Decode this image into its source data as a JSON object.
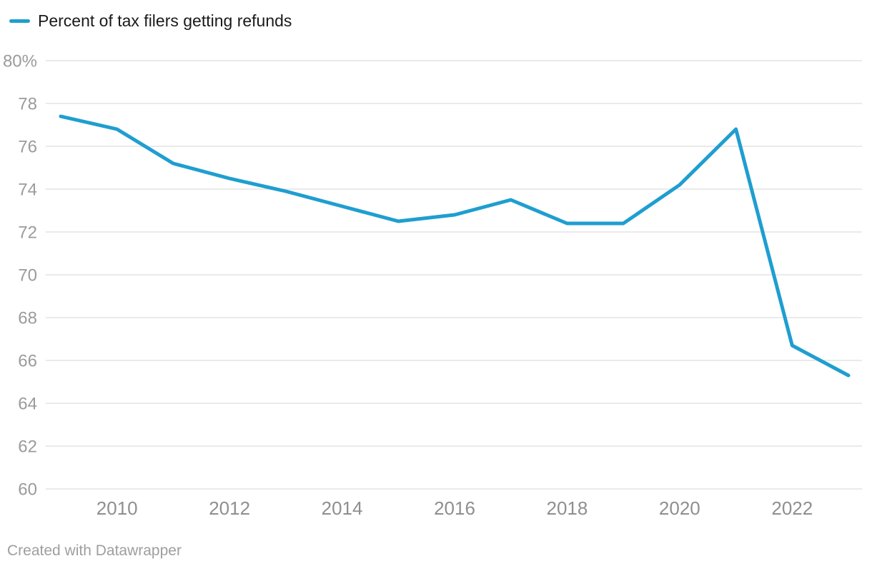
{
  "legend": {
    "label": "Percent of tax filers getting refunds"
  },
  "footer": {
    "credit": "Created with Datawrapper"
  },
  "colors": {
    "line": "#1f9ed0",
    "grid": "#e3e3e3",
    "y_axis_text": "#9b9b9b",
    "x_axis_text": "#8f8f8f",
    "legend_text": "#1a1a1a",
    "footer_text": "#9e9e9e"
  },
  "chart_data": {
    "type": "line",
    "title": "",
    "xlabel": "",
    "ylabel": "",
    "grid": "horizontal",
    "legend_position": "top-left",
    "ylim": [
      60,
      80
    ],
    "series": [
      {
        "name": "Percent of tax filers getting refunds",
        "x": [
          2009,
          2010,
          2011,
          2012,
          2013,
          2014,
          2015,
          2016,
          2017,
          2018,
          2019,
          2020,
          2021,
          2022,
          2023
        ],
        "values": [
          77.4,
          76.8,
          75.2,
          74.5,
          73.9,
          73.2,
          72.5,
          72.8,
          73.5,
          72.4,
          72.4,
          74.2,
          76.8,
          66.7,
          65.3
        ]
      }
    ],
    "ytick_values": [
      80,
      78,
      76,
      74,
      72,
      70,
      68,
      66,
      64,
      62,
      60
    ],
    "ytick_labels": [
      "80%",
      "78",
      "76",
      "74",
      "72",
      "70",
      "68",
      "66",
      "64",
      "62",
      "60"
    ],
    "xtick_values": [
      2010,
      2012,
      2014,
      2016,
      2018,
      2020,
      2022
    ],
    "xtick_labels": [
      "2010",
      "2012",
      "2014",
      "2016",
      "2018",
      "2020",
      "2022"
    ]
  }
}
